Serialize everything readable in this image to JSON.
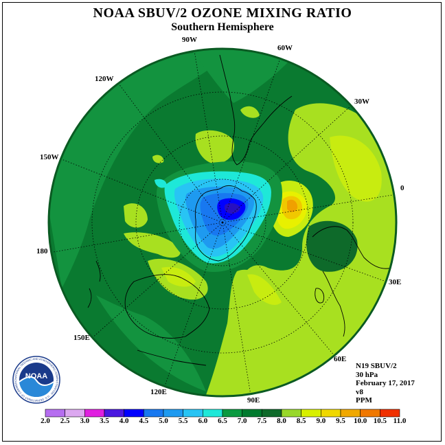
{
  "title": "NOAA SBUV/2 OZONE MIXING RATIO",
  "subtitle": "Southern Hemisphere",
  "longitude_labels": {
    "lon_90W": "90W",
    "lon_60W": "60W",
    "lon_120W": "120W",
    "lon_30W": "30W",
    "lon_150W": "150W",
    "lon_0": "0",
    "lon_180": "180",
    "lon_30E": "30E",
    "lon_150E": "150E",
    "lon_60E": "60E",
    "lon_120E": "120E",
    "lon_90E": "90E"
  },
  "info": {
    "instrument": "N19 SBUV/2",
    "level": "30 hPa",
    "date": "February 17, 2017",
    "version": "v8",
    "units": "PPM"
  },
  "colorbar": {
    "labels": [
      "2.0",
      "2.5",
      "3.0",
      "3.5",
      "4.0",
      "4.5",
      "5.0",
      "5.5",
      "6.0",
      "6.5",
      "7.0",
      "7.5",
      "8.0",
      "8.5",
      "9.0",
      "9.5",
      "10.0",
      "10.5",
      "11.0"
    ],
    "colors": [
      "#b66ef0",
      "#dca8f0",
      "#e020e0",
      "#4a18e0",
      "#0000ff",
      "#1878f0",
      "#1e9af0",
      "#28c4f4",
      "#1ee8d8",
      "#0a9a40",
      "#007a2e",
      "#0e6a2a",
      "#98d82a",
      "#d8f000",
      "#f0d800",
      "#f0a800",
      "#f07800",
      "#f03000",
      "#e80000",
      "#7a4a28"
    ]
  },
  "logo_text": "NOAA",
  "logo_ring_text": "NATIONAL OCEANIC AND ATMOSPHERIC ADMINISTRATION · U.S. DEPARTMENT OF COMMERCE"
}
